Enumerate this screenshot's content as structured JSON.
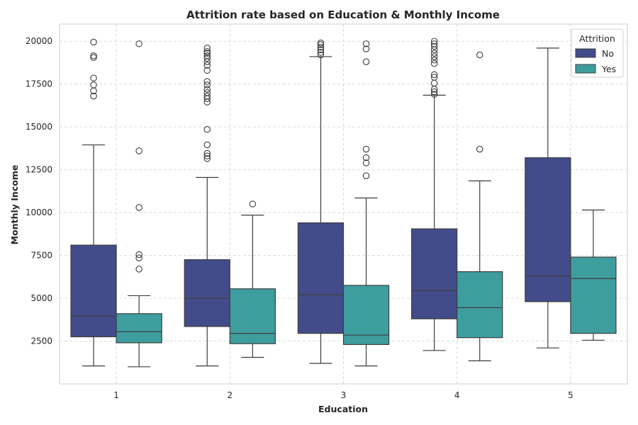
{
  "chart_data": {
    "type": "box",
    "title": "Attrition rate based on Education & Monthly Income",
    "xlabel": "Education",
    "ylabel": "Monthly Income",
    "categories": [
      "1",
      "2",
      "3",
      "4",
      "5"
    ],
    "ylim": [
      0,
      21000
    ],
    "yticks": [
      2500,
      5000,
      7500,
      10000,
      12500,
      15000,
      17500,
      20000
    ],
    "grid": true,
    "legend": {
      "title": "Attrition",
      "position": "top-right"
    },
    "series": [
      {
        "name": "No",
        "color": "#434c8a",
        "boxes": [
          {
            "whisker_low": 1050,
            "q1": 2750,
            "median": 3950,
            "q3": 8100,
            "whisker_high": 13950,
            "outliers": [
              16800,
              17100,
              17450,
              17850,
              19050,
              19150,
              19950
            ]
          },
          {
            "whisker_low": 1050,
            "q1": 3350,
            "median": 5000,
            "q3": 7250,
            "whisker_high": 12050,
            "outliers": [
              13150,
              13300,
              13450,
              13950,
              14850,
              16450,
              16650,
              16800,
              17000,
              17200,
              17450,
              17650,
              18300,
              18600,
              18800,
              19000,
              19150,
              19300,
              19400,
              19600
            ]
          },
          {
            "whisker_low": 1200,
            "q1": 2950,
            "median": 5200,
            "q3": 9400,
            "whisker_high": 19100,
            "outliers": [
              19200,
              19350,
              19500,
              19650,
              19800,
              19900
            ]
          },
          {
            "whisker_low": 1950,
            "q1": 3800,
            "median": 5450,
            "q3": 9050,
            "whisker_high": 16850,
            "outliers": [
              16900,
              17050,
              17200,
              17550,
              17900,
              18050,
              18700,
              18900,
              19100,
              19300,
              19500,
              19700,
              19850,
              20000
            ]
          },
          {
            "whisker_low": 2100,
            "q1": 4800,
            "median": 6300,
            "q3": 13200,
            "whisker_high": 19600,
            "outliers": []
          }
        ]
      },
      {
        "name": "Yes",
        "color": "#3e9e9f",
        "boxes": [
          {
            "whisker_low": 1000,
            "q1": 2400,
            "median": 3050,
            "q3": 4100,
            "whisker_high": 5150,
            "outliers": [
              6700,
              7350,
              7550,
              10300,
              13600,
              19850
            ]
          },
          {
            "whisker_low": 1550,
            "q1": 2350,
            "median": 2950,
            "q3": 5550,
            "whisker_high": 9850,
            "outliers": [
              10500
            ]
          },
          {
            "whisker_low": 1050,
            "q1": 2300,
            "median": 2850,
            "q3": 5750,
            "whisker_high": 10850,
            "outliers": [
              12150,
              12900,
              13200,
              13700,
              18800,
              19550,
              19850
            ]
          },
          {
            "whisker_low": 1350,
            "q1": 2700,
            "median": 4450,
            "q3": 6550,
            "whisker_high": 11850,
            "outliers": [
              13700,
              19200
            ]
          },
          {
            "whisker_low": 2550,
            "q1": 2950,
            "median": 6150,
            "q3": 7400,
            "whisker_high": 10150,
            "outliers": []
          }
        ]
      }
    ]
  }
}
